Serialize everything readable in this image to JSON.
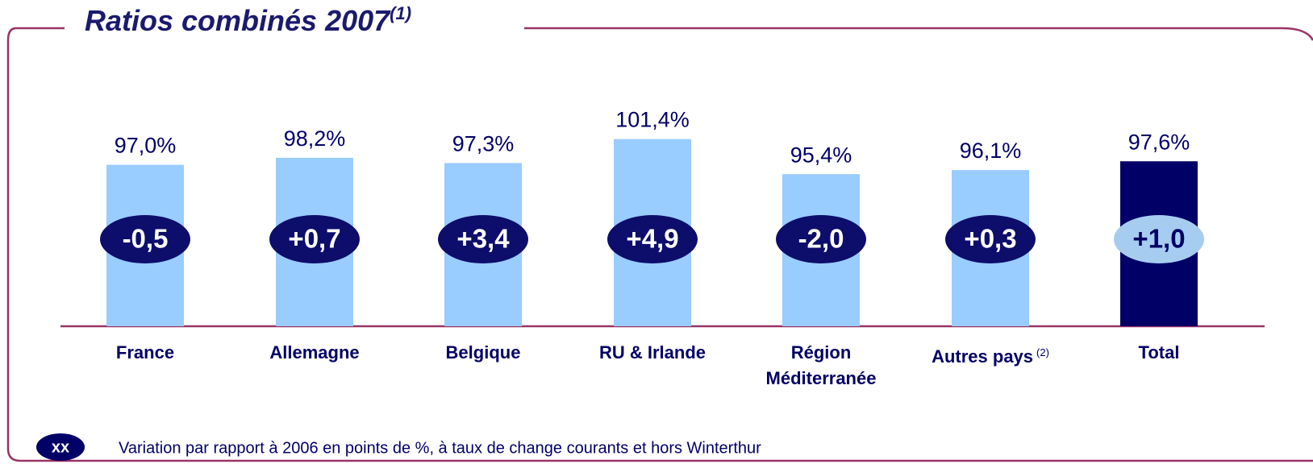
{
  "chart_data": {
    "type": "bar",
    "title": "Ratios combinés 2007",
    "title_note": "(1)",
    "categories": [
      "France",
      "Allemagne",
      "Belgique",
      "RU & Irlande",
      "Région Méditerranée",
      "Autres pays",
      "Total"
    ],
    "category_notes": [
      null,
      null,
      null,
      null,
      null,
      "(2)",
      null
    ],
    "values": [
      97.0,
      98.2,
      97.3,
      101.4,
      95.4,
      96.1,
      97.6
    ],
    "value_labels": [
      "97,0%",
      "98,2%",
      "97,3%",
      "101,4%",
      "95,4%",
      "96,1%",
      "97,6%"
    ],
    "colors": [
      "#99ccff",
      "#99ccff",
      "#99ccff",
      "#99ccff",
      "#99ccff",
      "#99ccff",
      "#000066"
    ],
    "variation_labels": [
      "-0,5",
      "+0,7",
      "+3,4",
      "+4,9",
      "-2,0",
      "+0,3",
      "+1,0"
    ],
    "ylim": [
      69.4,
      111.4
    ],
    "legend_symbol": "xx",
    "legend_text": "Variation par rapport à 2006 en points de %, à taux de change courants et hors Winterthur"
  }
}
